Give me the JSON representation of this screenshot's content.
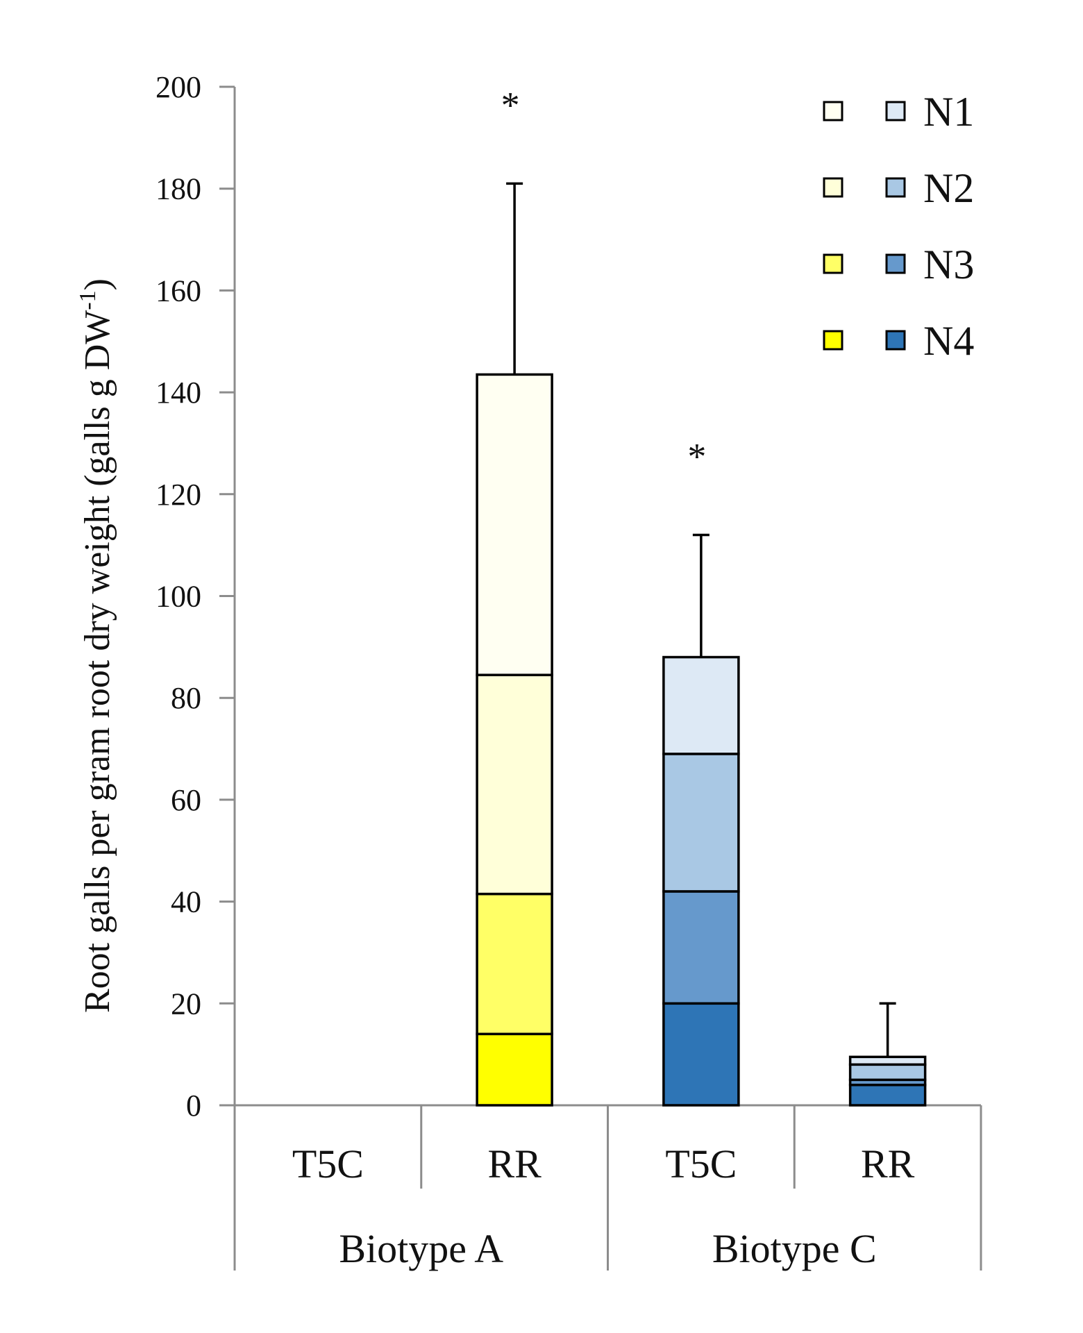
{
  "chart_data": {
    "type": "bar",
    "stacked": true,
    "title": "",
    "xlabel": "",
    "ylabel": "Root galls per gram root dry weight (galls g DW",
    "ylabel_superscript": "-1",
    "ylabel_suffix": ")",
    "ylim": [
      0,
      200
    ],
    "yticks": [
      0,
      20,
      40,
      60,
      80,
      100,
      120,
      140,
      160,
      180,
      200
    ],
    "categories": [
      "T5C",
      "RR",
      "T5C",
      "RR"
    ],
    "groups": [
      {
        "name": "Biotype A",
        "categories": [
          0,
          1
        ]
      },
      {
        "name": "Biotype C",
        "categories": [
          2,
          3
        ]
      }
    ],
    "series": [
      {
        "name": "N4",
        "values": [
          0,
          14,
          20,
          4
        ],
        "colors": [
          "#ffff00",
          "#ffff00",
          "#2e75b6",
          "#2e75b6"
        ]
      },
      {
        "name": "N3",
        "values": [
          0,
          27.5,
          22,
          1
        ],
        "colors": [
          "#ffff66",
          "#ffff66",
          "#6699cc",
          "#6699cc"
        ]
      },
      {
        "name": "N2",
        "values": [
          0,
          43,
          27,
          3
        ],
        "colors": [
          "#ffffd9",
          "#ffffd9",
          "#a9c8e4",
          "#a9c8e4"
        ]
      },
      {
        "name": "N1",
        "values": [
          0,
          59,
          19,
          1.5
        ],
        "colors": [
          "#fffff2",
          "#fffff2",
          "#dde9f5",
          "#dde9f5"
        ]
      }
    ],
    "totals": [
      0,
      143.5,
      88,
      9.5
    ],
    "error_upper": [
      0,
      181,
      112,
      20
    ],
    "significance": [
      "",
      "*",
      "*",
      ""
    ],
    "legend": {
      "position": "top-right",
      "entries": [
        {
          "label": "N1",
          "colorA": "#fffff2",
          "colorC": "#dde9f5"
        },
        {
          "label": "N2",
          "colorA": "#ffffd9",
          "colorC": "#a9c8e4"
        },
        {
          "label": "N3",
          "colorA": "#ffff66",
          "colorC": "#6699cc"
        },
        {
          "label": "N4",
          "colorA": "#ffff00",
          "colorC": "#2e75b6"
        }
      ]
    }
  }
}
